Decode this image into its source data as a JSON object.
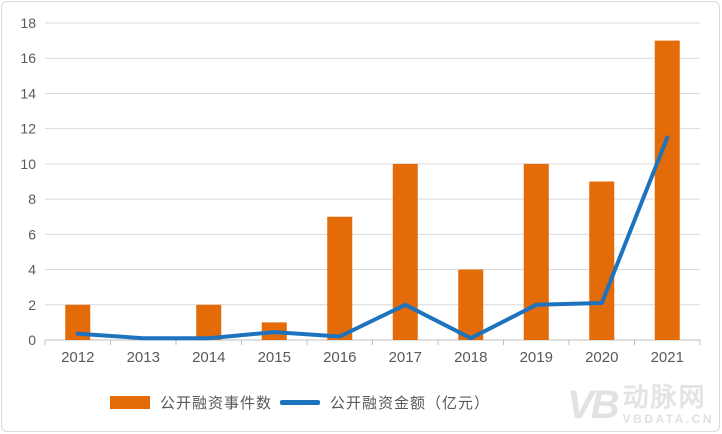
{
  "chart_data": {
    "type": "combo-bar-line",
    "title": "",
    "xlabel": "",
    "ylabel": "",
    "categories": [
      "2012",
      "2013",
      "2014",
      "2015",
      "2016",
      "2017",
      "2018",
      "2019",
      "2020",
      "2021"
    ],
    "series": [
      {
        "name": "公开融资事件数",
        "type": "bar",
        "color": "#E36C09",
        "values": [
          2,
          0,
          2,
          1,
          7,
          10,
          4,
          10,
          9,
          17
        ]
      },
      {
        "name": "公开融资金额（亿元）",
        "type": "line",
        "color": "#1E73BE",
        "values": [
          0.35,
          0.1,
          0.1,
          0.45,
          0.2,
          2,
          0.1,
          2,
          2.1,
          11.5
        ]
      }
    ],
    "ylim": [
      0,
      18
    ],
    "ytick_step": 2,
    "grid": true,
    "legend_position": "bottom"
  },
  "legend": {
    "items": [
      {
        "label": "公开融资事件数",
        "swatch": "rect",
        "color": "#E36C09"
      },
      {
        "label": "公开融资金额（亿元）",
        "swatch": "line",
        "color": "#1E73BE"
      }
    ]
  },
  "watermark": {
    "logo_text": "VB",
    "brand": "动脉网",
    "site": "VBDATA.CN"
  },
  "theme": {
    "grid_color": "#D9D9D9",
    "axis_color": "#BFBFBF",
    "label_color": "#595959",
    "frame_color": "#D9D9D9",
    "watermark_color": "#E2E2E2",
    "background": "#FFFFFF"
  }
}
